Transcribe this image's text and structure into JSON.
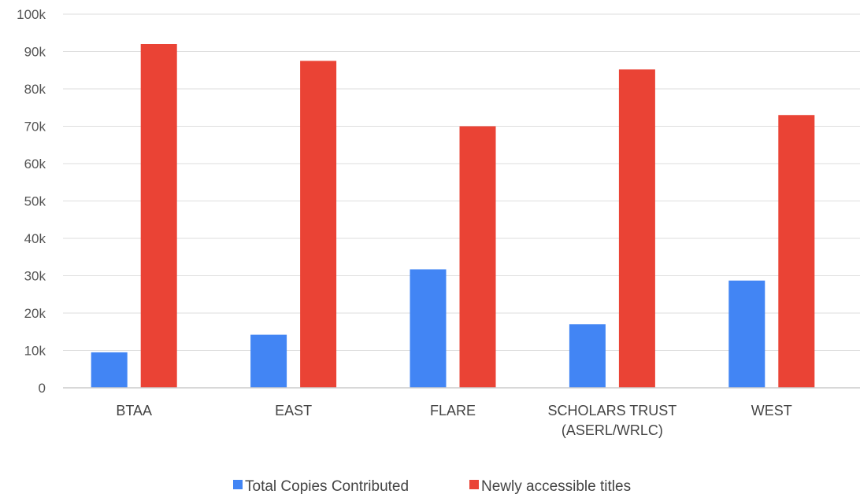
{
  "chart_data": {
    "type": "bar",
    "categories": [
      [
        "BTAA"
      ],
      [
        "EAST"
      ],
      [
        "FLARE"
      ],
      [
        "SCHOLARS TRUST",
        "(ASERL/WRLC)"
      ],
      [
        "WEST"
      ]
    ],
    "series": [
      {
        "name": "Total Copies Contributed",
        "color": "#4285f4",
        "values": [
          9500,
          14200,
          31700,
          17000,
          28700
        ]
      },
      {
        "name": "Newly accessible titles",
        "color": "#ea4335",
        "values": [
          92000,
          87500,
          70000,
          85200,
          73000
        ]
      }
    ],
    "yticks": [
      "0",
      "10k",
      "20k",
      "30k",
      "40k",
      "50k",
      "60k",
      "70k",
      "80k",
      "90k",
      "100k"
    ],
    "ylim": [
      0,
      100000
    ],
    "grid": true,
    "legend_position": "bottom"
  }
}
